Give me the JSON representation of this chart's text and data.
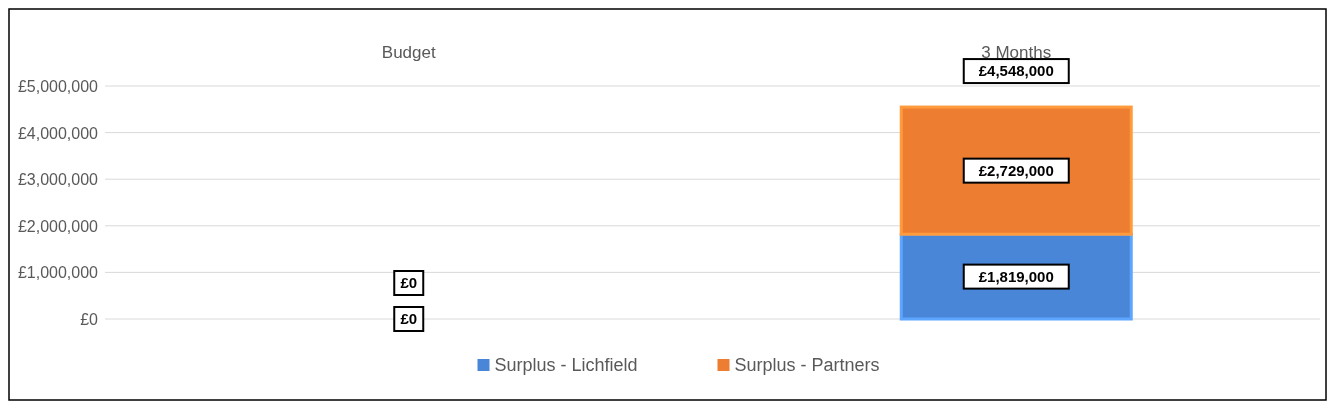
{
  "chart_data": {
    "type": "bar",
    "stacked": true,
    "categories": [
      "Budget",
      "3 Months"
    ],
    "series": [
      {
        "name": "Surplus - Lichfield",
        "color": "#4a86d8",
        "values": [
          0,
          1819000
        ],
        "value_labels": [
          "£0",
          "£1,819,000"
        ]
      },
      {
        "name": "Surplus - Partners",
        "color": "#ed7d31",
        "values": [
          0,
          2729000
        ],
        "value_labels": [
          "£0",
          "£2,729,000"
        ]
      }
    ],
    "totals": [
      null,
      "£4,548,000"
    ],
    "ylim": [
      0,
      5000000
    ],
    "yticks": [
      {
        "value": 0,
        "label": "£0"
      },
      {
        "value": 1000000,
        "label": "£1,000,000"
      },
      {
        "value": 2000000,
        "label": "£2,000,000"
      },
      {
        "value": 3000000,
        "label": "£3,000,000"
      },
      {
        "value": 4000000,
        "label": "£4,000,000"
      },
      {
        "value": 5000000,
        "label": "£5,000,000"
      }
    ],
    "grid": "y",
    "legend": "bottom"
  }
}
